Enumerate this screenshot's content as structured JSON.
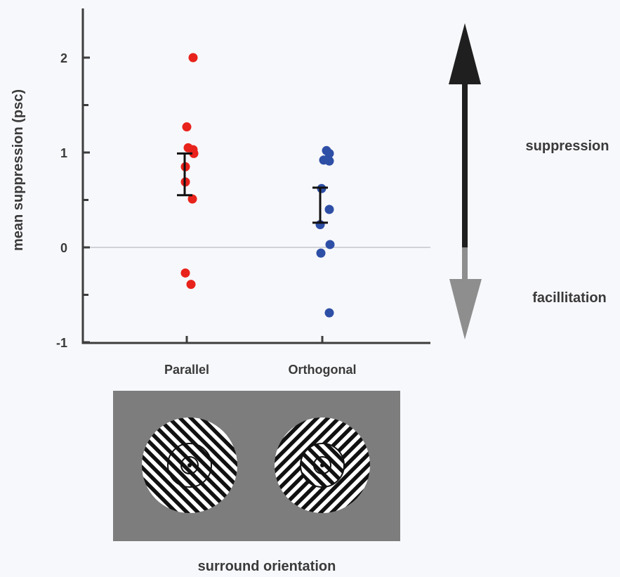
{
  "chart_data": {
    "type": "scatter",
    "ylabel": "mean suppression (psc)",
    "xlabel": "surround orientation",
    "categories": [
      "Parallel",
      "Orthogonal"
    ],
    "ylim": [
      -1,
      2.5
    ],
    "yticks": [
      -1,
      0,
      1,
      2
    ],
    "ytick_labels": [
      "-1",
      "0",
      "1",
      "2"
    ],
    "reference_line_y": 0,
    "series": [
      {
        "category": "Parallel",
        "color": "#e8231b",
        "values": [
          2.0,
          1.27,
          1.05,
          1.03,
          0.99,
          0.85,
          0.69,
          0.51,
          -0.27,
          -0.39
        ],
        "error_bar": [
          0.55,
          0.99
        ]
      },
      {
        "category": "Orthogonal",
        "color": "#2e4fa6",
        "values": [
          1.02,
          0.99,
          0.92,
          0.91,
          0.62,
          0.4,
          0.24,
          0.03,
          -0.06,
          -0.69
        ],
        "error_bar": [
          0.26,
          0.63
        ]
      }
    ],
    "annotations": {
      "up_label": "suppression",
      "down_label": "facillitation",
      "up_color": "#1f1f1f",
      "down_color": "#8e8e8e"
    },
    "stimulus_panel": {
      "background": "#7d7d7d",
      "stimuli": [
        "parallel",
        "orthogonal"
      ]
    }
  }
}
